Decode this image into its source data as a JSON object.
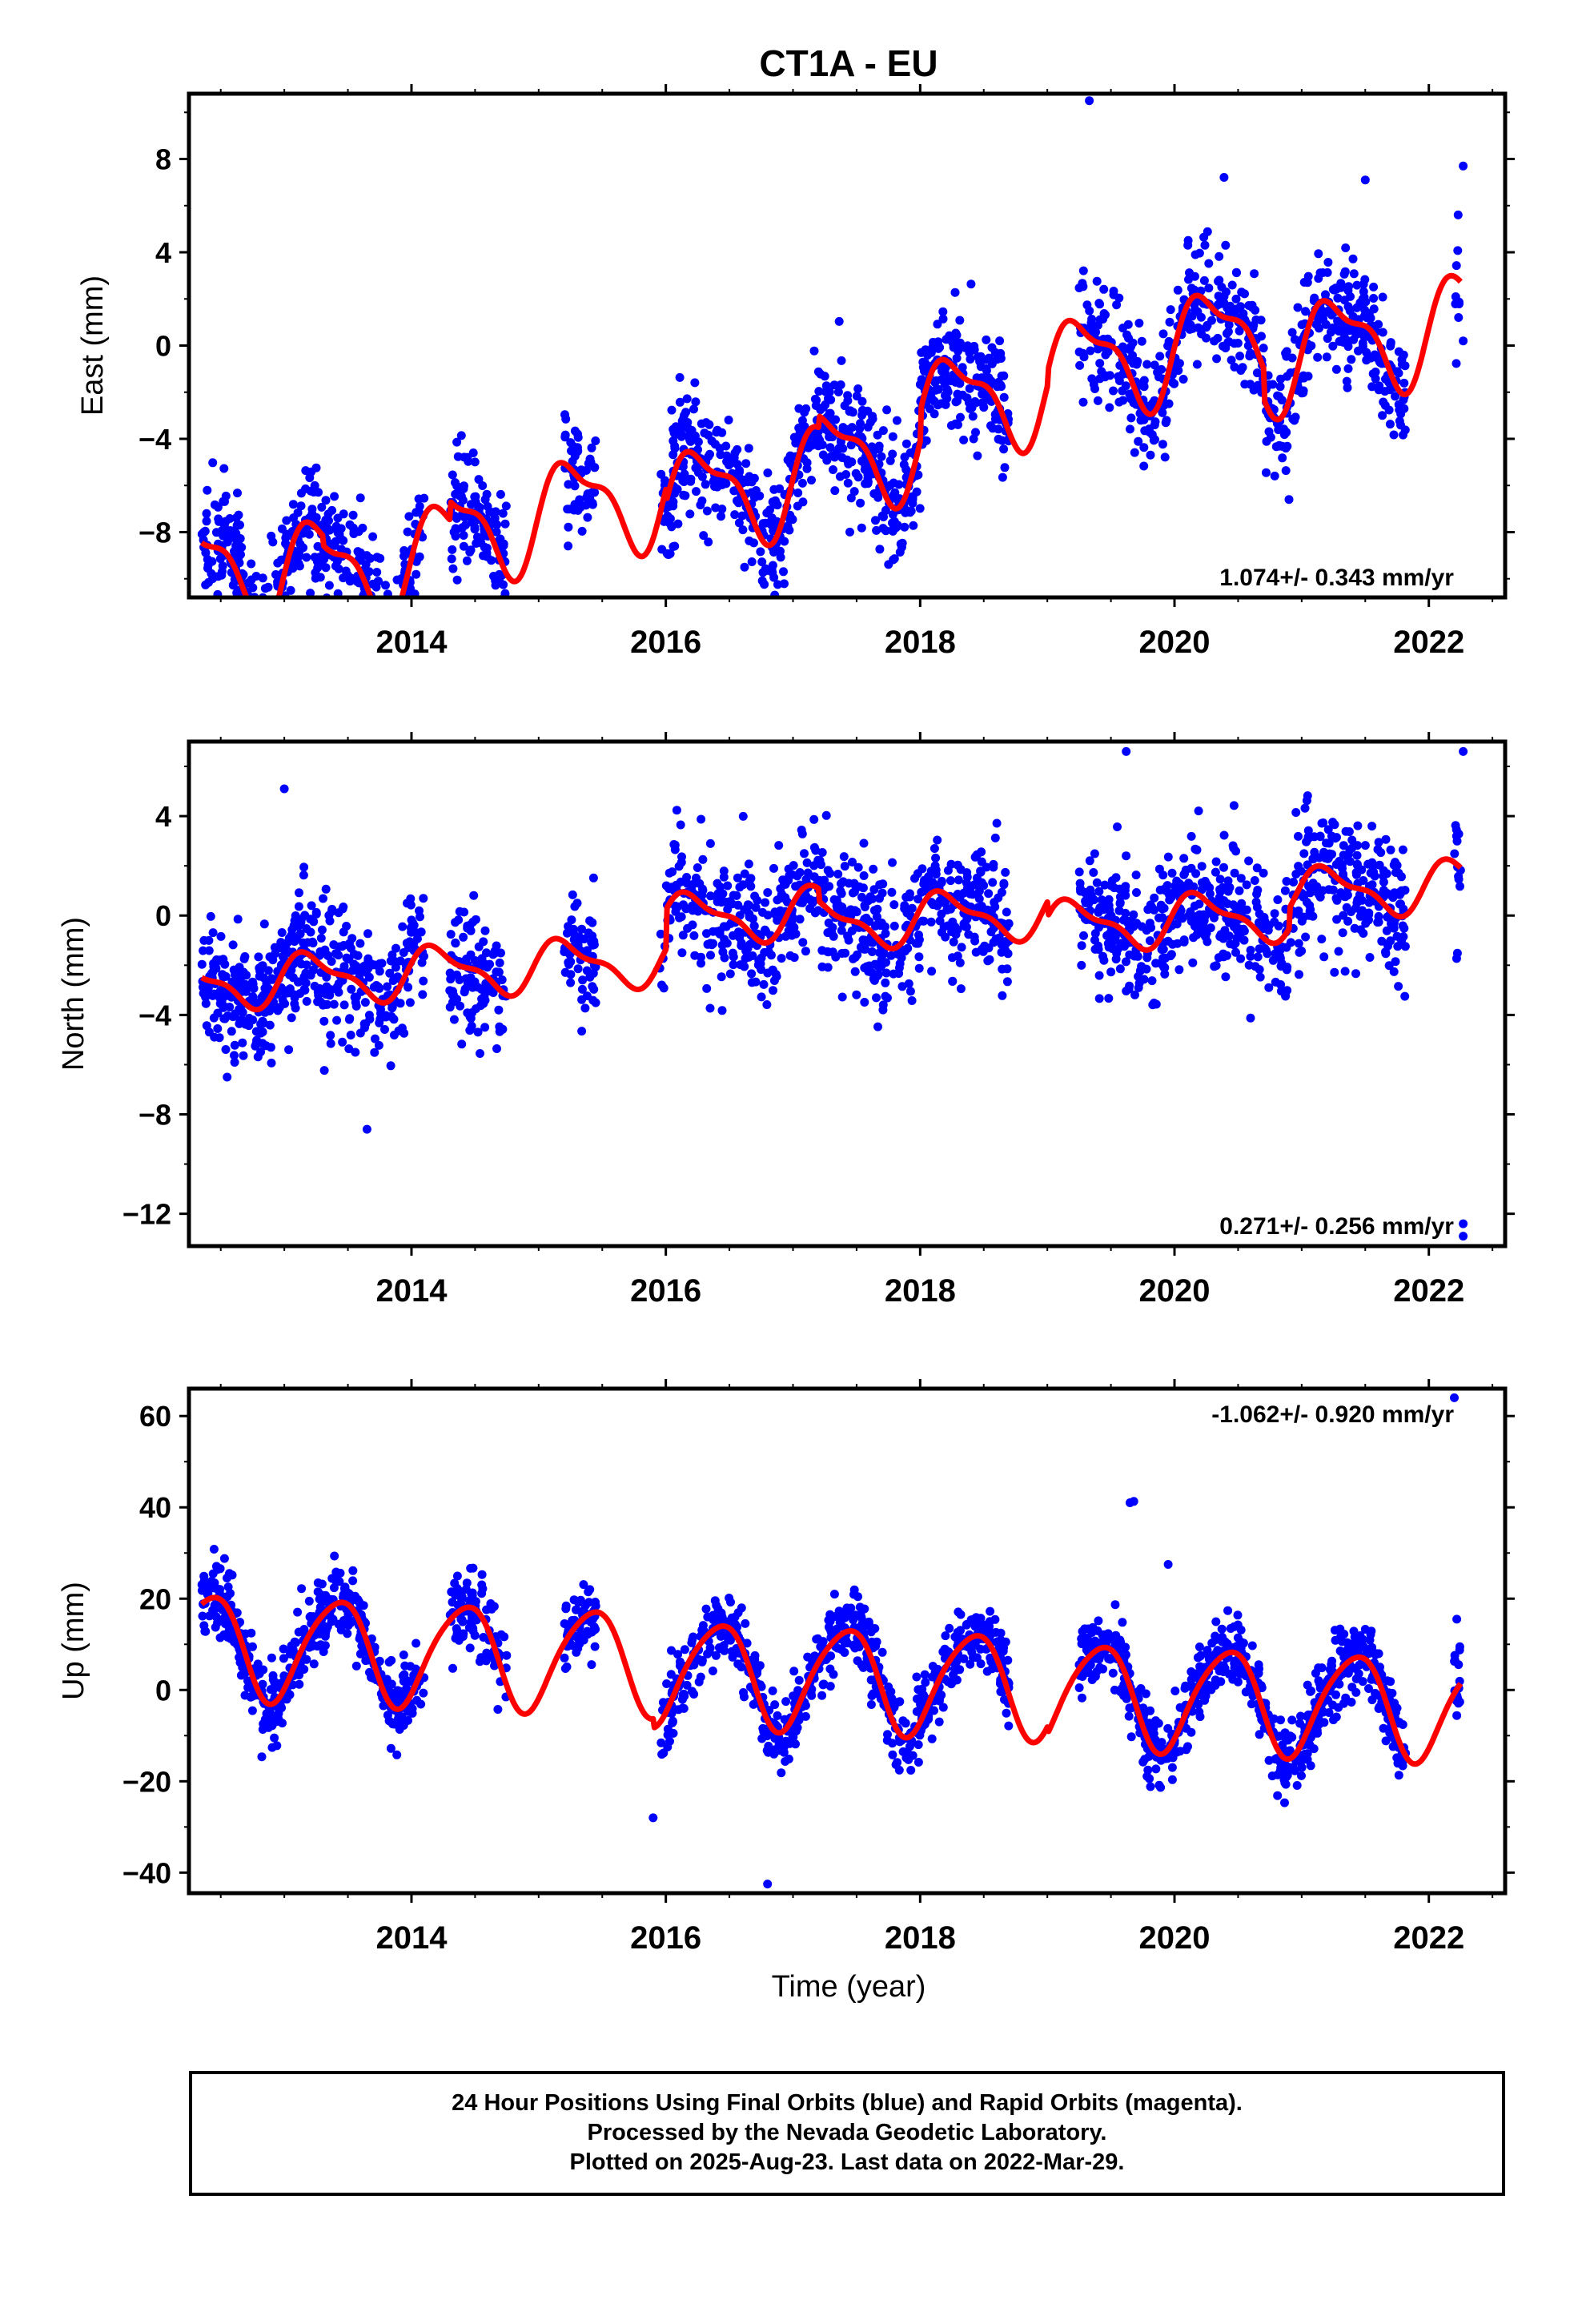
{
  "title": "CT1A - EU",
  "x_label": "Time (year)",
  "footer": {
    "line1": "24 Hour Positions Using Final Orbits (blue) and Rapid Orbits (magenta).",
    "line2": "Processed by the Nevada Geodetic Laboratory.",
    "line3": "Plotted on 2025-Aug-23. Last data on 2022-Mar-29."
  },
  "colors": {
    "points": "#0000ff",
    "model": "#ff0000",
    "frame": "#000000"
  },
  "chart_data": [
    {
      "type": "scatter",
      "panel": "east",
      "ylabel": "East (mm)",
      "xlim": [
        2012.25,
        2022.6
      ],
      "ylim": [
        -10.8,
        10.8
      ],
      "x_ticks": [
        2014,
        2016,
        2018,
        2020,
        2022
      ],
      "y_ticks": [
        -8,
        -4,
        0,
        4,
        8
      ],
      "y_tick_labels": [
        "−8",
        "−4",
        "0",
        "4",
        "8"
      ],
      "rate_label": "1.074+/- 0.343 mm/yr",
      "rate_position": "bottom-right",
      "model": {
        "offset": -4.5,
        "rate": 1.074,
        "annual_sin": 2.0,
        "annual_cos": -0.3,
        "semiannual_sin": 0.7,
        "semiannual_cos": 0.3,
        "steps": [
          [
            2012.75,
            -1.0
          ],
          [
            2013.3,
            -0.4
          ],
          [
            2014.3,
            0.8
          ],
          [
            2016.0,
            -0.6
          ],
          [
            2017.2,
            0.5
          ],
          [
            2018.0,
            1.3
          ],
          [
            2019.0,
            0.6
          ],
          [
            2020.7,
            -1.3
          ]
        ]
      },
      "scatter": {
        "noise": 1.3,
        "seed": 11,
        "count": 2600
      },
      "extra_points": [
        [
          2019.33,
          10.5
        ],
        [
          2021.5,
          7.1
        ],
        [
          2013.05,
          -10.5
        ],
        [
          2020.9,
          -6.6
        ],
        [
          2016.7,
          -6.3
        ],
        [
          2022.27,
          7.7
        ],
        [
          2022.27,
          0.2
        ]
      ]
    },
    {
      "type": "scatter",
      "panel": "north",
      "ylabel": "North (mm)",
      "xlim": [
        2012.25,
        2022.6
      ],
      "ylim": [
        -13.3,
        7.0
      ],
      "x_ticks": [
        2014,
        2016,
        2018,
        2020,
        2022
      ],
      "y_ticks": [
        -12,
        -8,
        -4,
        0,
        4
      ],
      "y_tick_labels": [
        "−12",
        "−8",
        "−4",
        "0",
        "4"
      ],
      "rate_label": "0.271+/- 0.256 mm/yr",
      "rate_position": "bottom-right",
      "model": {
        "offset": -1.5,
        "rate": 0.271,
        "annual_sin": 0.9,
        "annual_cos": 0.2,
        "semiannual_sin": 0.3,
        "semiannual_cos": 0.2,
        "steps": [
          [
            2016.0,
            1.6
          ],
          [
            2017.2,
            -0.5
          ],
          [
            2019.0,
            -0.6
          ],
          [
            2020.9,
            0.8
          ]
        ]
      },
      "scatter": {
        "noise": 1.3,
        "seed": 23,
        "count": 2600
      },
      "extra_points": [
        [
          2022.27,
          -12.4
        ],
        [
          2022.27,
          -12.9
        ],
        [
          2022.27,
          6.6
        ],
        [
          2019.62,
          6.6
        ],
        [
          2013.0,
          5.1
        ],
        [
          2013.65,
          -8.6
        ],
        [
          2012.55,
          -6.5
        ]
      ]
    },
    {
      "type": "scatter",
      "panel": "up",
      "ylabel": "Up (mm)",
      "xlim": [
        2012.25,
        2022.6
      ],
      "ylim": [
        -44.5,
        66.0
      ],
      "x_ticks": [
        2014,
        2016,
        2018,
        2020,
        2022
      ],
      "y_ticks": [
        -40,
        -20,
        0,
        20,
        40,
        60
      ],
      "y_tick_labels": [
        "−40",
        "−20",
        "0",
        "20",
        "40",
        "60"
      ],
      "rate_label": "-1.062+/- 0.920 mm/yr",
      "rate_position": "top-right",
      "model": {
        "offset": 5.0,
        "rate": -1.062,
        "annual_sin": 6.0,
        "annual_cos": -9.5,
        "semiannual_sin": 1.5,
        "semiannual_cos": 0.5,
        "steps": [
          [
            2015.9,
            -2.0
          ],
          [
            2019.0,
            -1.5
          ]
        ]
      },
      "scatter": {
        "noise": 4.0,
        "seed": 37,
        "count": 2600
      },
      "extra_points": [
        [
          2022.2,
          64.0
        ],
        [
          2019.65,
          41.0
        ],
        [
          2019.68,
          41.3
        ],
        [
          2016.8,
          -42.5
        ],
        [
          2019.95,
          27.5
        ],
        [
          2022.22,
          15.5
        ],
        [
          2015.9,
          -28.0
        ]
      ]
    },
    {
      "type": "scatter",
      "panel": "data_coverage",
      "segments": [
        [
          2012.35,
          2014.1
        ],
        [
          2014.3,
          2014.75
        ],
        [
          2015.2,
          2015.45
        ],
        [
          2015.95,
          2018.7
        ],
        [
          2019.25,
          2021.82
        ],
        [
          2022.2,
          2022.25
        ]
      ]
    }
  ]
}
